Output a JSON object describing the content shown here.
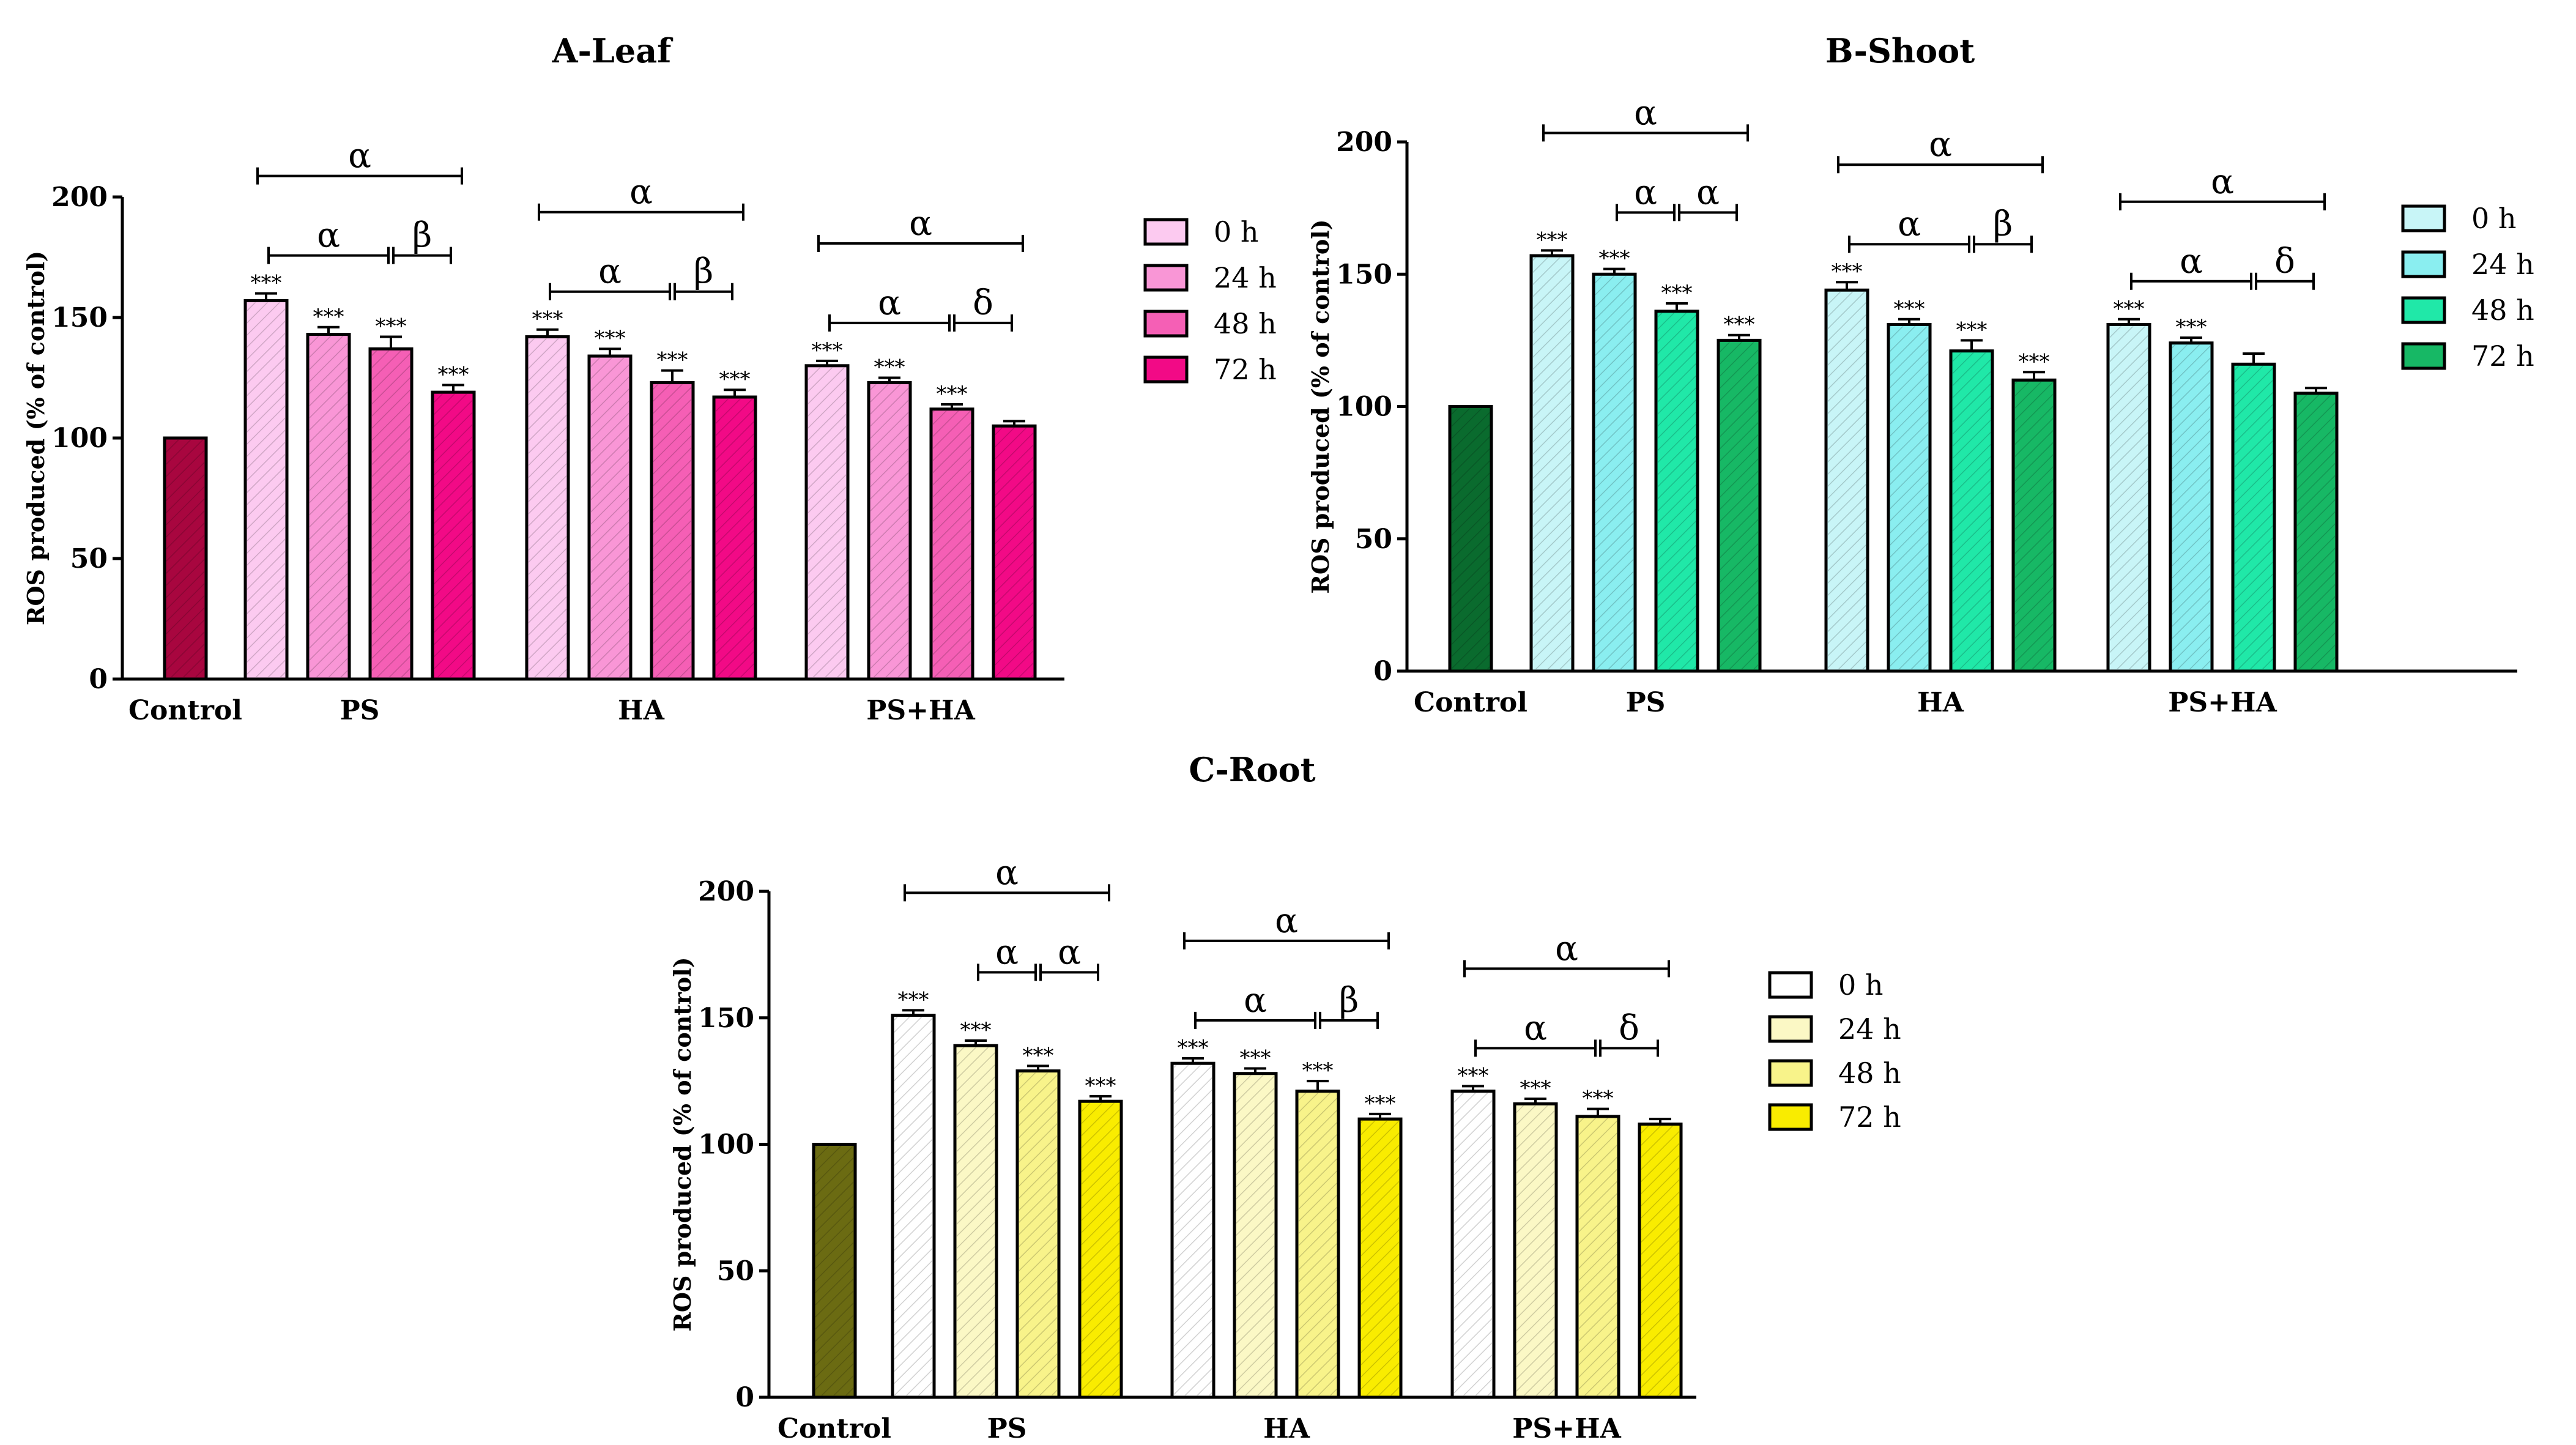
{
  "chart_data": [
    {
      "type": "bar",
      "title": "A-Leaf",
      "ylabel": "ROS produced (% of control)",
      "ylim": [
        0,
        200
      ],
      "yticks": [
        0,
        50,
        100,
        150,
        200
      ],
      "groups": [
        "Control",
        "PS",
        "HA",
        "PS+HA"
      ],
      "control": {
        "value": 100,
        "color": "#a8063f"
      },
      "series": [
        {
          "name": "0 h",
          "color": "#fccaf0",
          "values": [
            157,
            142,
            130
          ],
          "err": [
            3,
            3,
            2
          ],
          "sig": [
            "***",
            "***",
            "***"
          ]
        },
        {
          "name": "24 h",
          "color": "#f996d6",
          "values": [
            143,
            134,
            123
          ],
          "err": [
            3,
            3,
            2
          ],
          "sig": [
            "***",
            "***",
            "***"
          ]
        },
        {
          "name": "48 h",
          "color": "#f55fb5",
          "values": [
            137,
            123,
            112
          ],
          "err": [
            5,
            5,
            2
          ],
          "sig": [
            "***",
            "***",
            "***"
          ]
        },
        {
          "name": "72 h",
          "color": "#f20a86",
          "values": [
            119,
            117,
            105
          ],
          "err": [
            3,
            3,
            2
          ],
          "sig": [
            "***",
            "***",
            ""
          ]
        }
      ],
      "comparisons": [
        {
          "group": 0,
          "from": 0,
          "to": 3,
          "level": 2,
          "label": "α"
        },
        {
          "group": 0,
          "from": 0,
          "to": 2,
          "level": 1,
          "label": "α"
        },
        {
          "group": 0,
          "from": 2,
          "to": 3,
          "level": 1,
          "label": "β"
        },
        {
          "group": 1,
          "from": 0,
          "to": 3,
          "level": 2,
          "label": "α"
        },
        {
          "group": 1,
          "from": 0,
          "to": 2,
          "level": 1,
          "label": "α"
        },
        {
          "group": 1,
          "from": 2,
          "to": 3,
          "level": 1,
          "label": "β"
        },
        {
          "group": 2,
          "from": 0,
          "to": 3,
          "level": 2,
          "label": "α"
        },
        {
          "group": 2,
          "from": 0,
          "to": 2,
          "level": 1,
          "label": "α"
        },
        {
          "group": 2,
          "from": 2,
          "to": 3,
          "level": 1,
          "label": "δ"
        }
      ],
      "legend_position": "right"
    },
    {
      "type": "bar",
      "title": "B-Shoot",
      "ylabel": "ROS produced (% of control)",
      "ylim": [
        0,
        200
      ],
      "yticks": [
        0,
        50,
        100,
        150,
        200
      ],
      "groups": [
        "Control",
        "PS",
        "HA",
        "PS+HA"
      ],
      "control": {
        "value": 100,
        "color": "#0a6b2e"
      },
      "series": [
        {
          "name": "0 h",
          "color": "#c8f5f7",
          "values": [
            157,
            144,
            131
          ],
          "err": [
            2,
            3,
            2
          ],
          "sig": [
            "***",
            "***",
            "***"
          ]
        },
        {
          "name": "24 h",
          "color": "#8aeef0",
          "values": [
            150,
            131,
            124
          ],
          "err": [
            2,
            2,
            2
          ],
          "sig": [
            "***",
            "***",
            "***"
          ]
        },
        {
          "name": "48 h",
          "color": "#20e8a8",
          "values": [
            136,
            121,
            116
          ],
          "err": [
            3,
            4,
            4
          ],
          "sig": [
            "***",
            "***",
            ""
          ]
        },
        {
          "name": "72 h",
          "color": "#17b865",
          "values": [
            125,
            110,
            105
          ],
          "err": [
            2,
            3,
            2
          ],
          "sig": [
            "***",
            "***",
            ""
          ]
        }
      ],
      "comparisons": [
        {
          "group": 0,
          "from": 0,
          "to": 3,
          "level": 2,
          "label": "α"
        },
        {
          "group": 0,
          "from": 1,
          "to": 2,
          "level": 1,
          "label": "α"
        },
        {
          "group": 0,
          "from": 2,
          "to": 3,
          "level": 1,
          "label": "α"
        },
        {
          "group": 1,
          "from": 0,
          "to": 3,
          "level": 2,
          "label": "α"
        },
        {
          "group": 1,
          "from": 0,
          "to": 2,
          "level": 1,
          "label": "α"
        },
        {
          "group": 1,
          "from": 2,
          "to": 3,
          "level": 1,
          "label": "β"
        },
        {
          "group": 2,
          "from": 0,
          "to": 3,
          "level": 2,
          "label": "α"
        },
        {
          "group": 2,
          "from": 0,
          "to": 2,
          "level": 1,
          "label": "α"
        },
        {
          "group": 2,
          "from": 2,
          "to": 3,
          "level": 1,
          "label": "δ"
        }
      ],
      "legend_position": "right"
    },
    {
      "type": "bar",
      "title": "C-Root",
      "ylabel": "ROS produced (% of control)",
      "ylim": [
        0,
        200
      ],
      "yticks": [
        0,
        50,
        100,
        150,
        200
      ],
      "groups": [
        "Control",
        "PS",
        "HA",
        "PS+HA"
      ],
      "control": {
        "value": 100,
        "color": "#6b6b12"
      },
      "series": [
        {
          "name": "0 h",
          "color": "#ffffff",
          "values": [
            151,
            132,
            121
          ],
          "err": [
            2,
            2,
            2
          ],
          "sig": [
            "***",
            "***",
            "***"
          ]
        },
        {
          "name": "24 h",
          "color": "#fbf8c5",
          "values": [
            139,
            128,
            116
          ],
          "err": [
            2,
            2,
            2
          ],
          "sig": [
            "***",
            "***",
            "***"
          ]
        },
        {
          "name": "48 h",
          "color": "#f8f38a",
          "values": [
            129,
            121,
            111
          ],
          "err": [
            2,
            4,
            3
          ],
          "sig": [
            "***",
            "***",
            "***"
          ]
        },
        {
          "name": "72 h",
          "color": "#f9ec00",
          "values": [
            117,
            110,
            108
          ],
          "err": [
            2,
            2,
            2
          ],
          "sig": [
            "***",
            "***",
            ""
          ]
        }
      ],
      "comparisons": [
        {
          "group": 0,
          "from": 0,
          "to": 3,
          "level": 2,
          "label": "α"
        },
        {
          "group": 0,
          "from": 1,
          "to": 2,
          "level": 1,
          "label": "α"
        },
        {
          "group": 0,
          "from": 2,
          "to": 3,
          "level": 1,
          "label": "α"
        },
        {
          "group": 1,
          "from": 0,
          "to": 3,
          "level": 2,
          "label": "α"
        },
        {
          "group": 1,
          "from": 0,
          "to": 2,
          "level": 1,
          "label": "α"
        },
        {
          "group": 1,
          "from": 2,
          "to": 3,
          "level": 1,
          "label": "β"
        },
        {
          "group": 2,
          "from": 0,
          "to": 3,
          "level": 2,
          "label": "α"
        },
        {
          "group": 2,
          "from": 0,
          "to": 2,
          "level": 1,
          "label": "α"
        },
        {
          "group": 2,
          "from": 2,
          "to": 3,
          "level": 1,
          "label": "δ"
        }
      ],
      "legend_position": "right"
    }
  ]
}
